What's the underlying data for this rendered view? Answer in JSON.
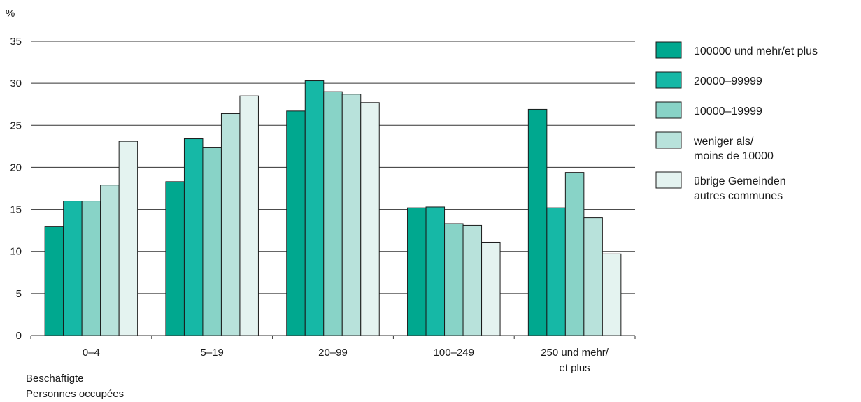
{
  "chart_data": {
    "type": "bar",
    "ylabel": "%",
    "ylim": [
      0,
      35
    ],
    "yticks": [
      0,
      5,
      10,
      15,
      20,
      25,
      30,
      35
    ],
    "grid": true,
    "legend_position": "right",
    "categories": [
      [
        "0–4"
      ],
      [
        "5–19"
      ],
      [
        "20–99"
      ],
      [
        "100–249"
      ],
      [
        "250 und mehr/",
        "et plus"
      ]
    ],
    "xlabel_lines": [
      "Beschäftigte",
      "Personnes occupées"
    ],
    "series": [
      {
        "name": [
          "100000 und mehr/et plus"
        ],
        "color": "#00a88f",
        "values": [
          13.0,
          18.3,
          26.7,
          15.2,
          26.9
        ]
      },
      {
        "name": [
          "20000–99999"
        ],
        "color": "#16b8a6",
        "values": [
          16.0,
          23.4,
          30.3,
          15.3,
          15.2
        ]
      },
      {
        "name": [
          "10000–19999"
        ],
        "color": "#88d3c7",
        "values": [
          16.0,
          22.4,
          29.0,
          13.3,
          19.4
        ]
      },
      {
        "name": [
          "weniger als/",
          "moins de 10000"
        ],
        "color": "#b8e2db",
        "values": [
          17.9,
          26.4,
          28.7,
          13.1,
          14.0
        ]
      },
      {
        "name": [
          "übrige Gemeinden",
          "autres communes"
        ],
        "color": "#e4f3f0",
        "values": [
          23.1,
          28.5,
          27.7,
          11.1,
          9.7
        ]
      }
    ]
  }
}
